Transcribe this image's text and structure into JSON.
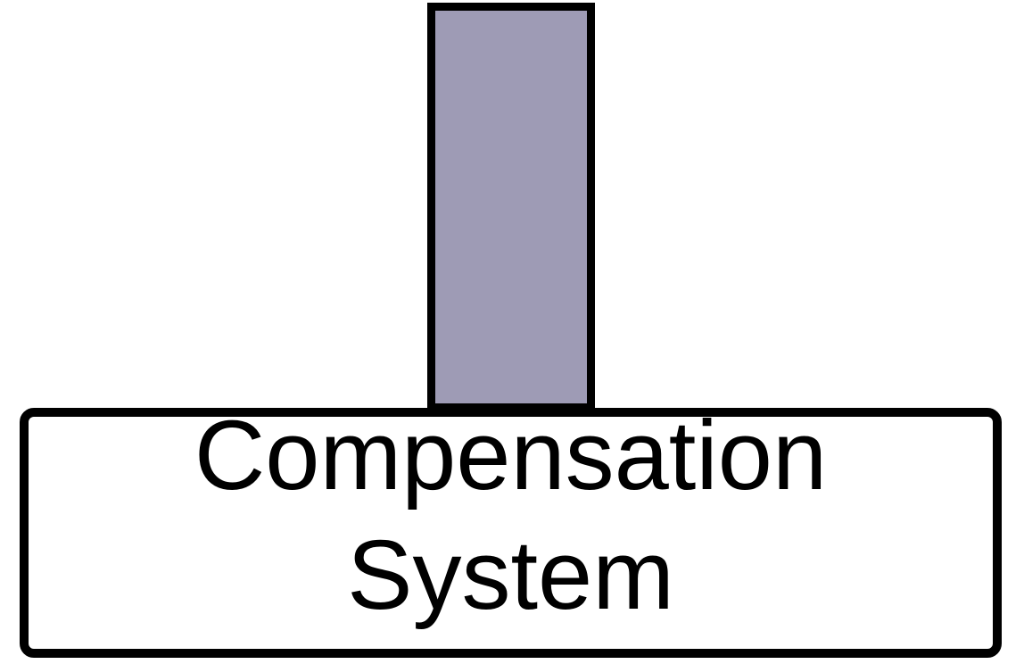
{
  "diagram": {
    "pillar": {
      "fill_color": "#9e9bb5",
      "border_color": "#000000"
    },
    "system_box": {
      "label_line_1": "Compensation",
      "label_line_2": "System",
      "fill_color": "#ffffff",
      "border_color": "#000000"
    }
  }
}
